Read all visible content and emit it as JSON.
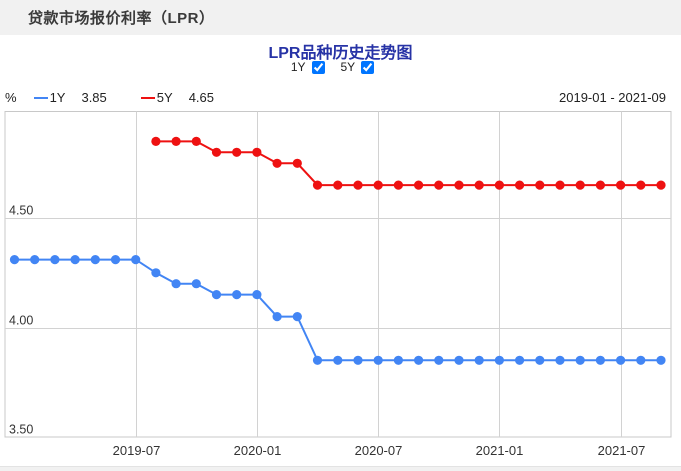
{
  "header": {
    "title": "贷款市场报价利率（LPR）"
  },
  "chart": {
    "title": "LPR品种历史走势图",
    "controls": [
      {
        "label": "1Y",
        "checked": true
      },
      {
        "label": "5Y",
        "checked": true
      }
    ],
    "legend": {
      "unit": "%",
      "items": [
        {
          "name": "1Y",
          "value": "3.85"
        },
        {
          "name": "5Y",
          "value": "4.65"
        }
      ],
      "date_range": "2019-01 - 2021-09"
    }
  },
  "chart_data": {
    "type": "line",
    "title": "LPR品种历史走势图",
    "unit": "%",
    "x_start": "2019-01",
    "x_end": "2021-09",
    "x_months": 33,
    "x_tick_labels": [
      "2019-07",
      "2020-01",
      "2020-07",
      "2021-01",
      "2021-07"
    ],
    "x_tick_indices": [
      6,
      12,
      18,
      24,
      30
    ],
    "ylim": [
      3.5,
      4.99
    ],
    "y_ticks": [
      "4.50",
      "4.00",
      "3.50"
    ],
    "grid": true,
    "legend_position": "top-left",
    "colors": {
      "blue_1y": "#4285f4",
      "red_5y": "#ee1111",
      "gridline": "#d2d2d2",
      "border": "#c8c8c8"
    },
    "series": [
      {
        "name": "1Y",
        "color": "#4285f4",
        "latest": "3.85",
        "values": [
          4.31,
          4.31,
          4.31,
          4.31,
          4.31,
          4.31,
          4.31,
          4.25,
          4.2,
          4.2,
          4.15,
          4.15,
          4.15,
          4.05,
          4.05,
          3.85,
          3.85,
          3.85,
          3.85,
          3.85,
          3.85,
          3.85,
          3.85,
          3.85,
          3.85,
          3.85,
          3.85,
          3.85,
          3.85,
          3.85,
          3.85,
          3.85,
          3.85
        ]
      },
      {
        "name": "5Y",
        "color": "#ee1111",
        "latest": "4.65",
        "values": [
          null,
          null,
          null,
          null,
          null,
          null,
          null,
          4.85,
          4.85,
          4.85,
          4.8,
          4.8,
          4.8,
          4.75,
          4.75,
          4.65,
          4.65,
          4.65,
          4.65,
          4.65,
          4.65,
          4.65,
          4.65,
          4.65,
          4.65,
          4.65,
          4.65,
          4.65,
          4.65,
          4.65,
          4.65,
          4.65,
          4.65
        ]
      }
    ]
  }
}
